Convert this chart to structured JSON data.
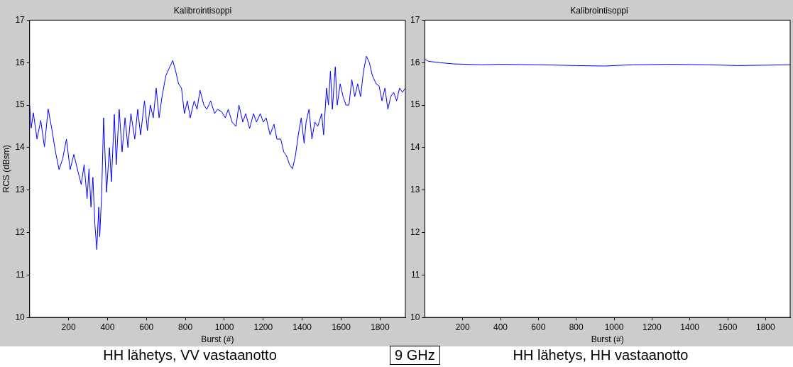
{
  "chart_data": [
    {
      "type": "line",
      "title": "Kalibrointisoppi",
      "xlabel": "Burst (#)",
      "ylabel": "RCS (dBsm)",
      "xlim": [
        0,
        1930
      ],
      "xticks": [
        200,
        400,
        600,
        800,
        1000,
        1200,
        1400,
        1600,
        1800
      ],
      "ylim": [
        10,
        17
      ],
      "yticks": [
        10,
        11,
        12,
        13,
        14,
        15,
        16,
        17
      ],
      "grid": false,
      "legend": false,
      "marker": "none",
      "line_style": "solid",
      "annotations": [
        "HH lähetys, VV vastaanotto",
        "9 GHz"
      ],
      "series": [
        {
          "color": "#0000ff",
          "x": [
            0,
            8,
            19,
            38,
            57,
            76,
            95,
            113,
            132,
            151,
            170,
            189,
            208,
            227,
            246,
            265,
            280,
            295,
            305,
            315,
            325,
            335,
            345,
            355,
            360,
            370,
            380,
            395,
            410,
            420,
            435,
            445,
            460,
            475,
            490,
            505,
            520,
            540,
            555,
            570,
            590,
            605,
            620,
            635,
            650,
            665,
            680,
            700,
            720,
            735,
            750,
            765,
            780,
            795,
            810,
            825,
            845,
            860,
            875,
            895,
            910,
            930,
            950,
            965,
            985,
            1005,
            1020,
            1040,
            1060,
            1075,
            1095,
            1110,
            1130,
            1150,
            1165,
            1185,
            1200,
            1215,
            1235,
            1255,
            1270,
            1290,
            1305,
            1320,
            1335,
            1350,
            1365,
            1380,
            1395,
            1410,
            1420,
            1435,
            1450,
            1465,
            1480,
            1500,
            1510,
            1525,
            1535,
            1545,
            1555,
            1570,
            1580,
            1595,
            1610,
            1625,
            1640,
            1655,
            1670,
            1685,
            1700,
            1715,
            1730,
            1745,
            1760,
            1780,
            1795,
            1810,
            1825,
            1840,
            1855,
            1870,
            1885,
            1900,
            1915,
            1930
          ],
          "values": [
            14.99,
            14.46,
            14.82,
            14.2,
            14.64,
            14.02,
            14.91,
            14.46,
            13.92,
            13.48,
            13.74,
            14.2,
            13.48,
            13.84,
            13.48,
            13.13,
            13.6,
            12.8,
            13.5,
            12.6,
            13.3,
            12.2,
            11.6,
            12.6,
            11.9,
            12.9,
            14.7,
            12.95,
            14.0,
            13.2,
            14.78,
            13.6,
            14.9,
            13.9,
            14.7,
            14.0,
            14.8,
            14.2,
            14.9,
            14.3,
            15.1,
            14.4,
            15.0,
            14.7,
            15.4,
            14.7,
            15.2,
            15.7,
            15.9,
            16.05,
            15.8,
            15.5,
            15.4,
            14.8,
            15.1,
            14.7,
            15.1,
            14.9,
            15.35,
            15.0,
            14.9,
            15.1,
            14.8,
            14.9,
            14.85,
            14.7,
            14.9,
            14.6,
            14.5,
            15.0,
            14.6,
            14.8,
            14.45,
            14.8,
            14.6,
            14.8,
            14.6,
            14.7,
            14.3,
            14.55,
            14.2,
            14.2,
            13.9,
            13.8,
            13.6,
            13.5,
            13.8,
            14.3,
            14.7,
            14.1,
            14.6,
            14.9,
            14.2,
            14.6,
            14.5,
            14.8,
            14.3,
            15.4,
            15.0,
            15.8,
            14.9,
            15.9,
            15.0,
            15.5,
            15.2,
            15.0,
            15.0,
            15.6,
            15.2,
            15.5,
            15.2,
            15.8,
            16.15,
            16.0,
            15.7,
            15.5,
            15.45,
            15.1,
            15.4,
            14.9,
            15.2,
            15.3,
            15.1,
            15.4,
            15.3,
            15.4
          ]
        }
      ]
    },
    {
      "type": "line",
      "title": "Kalibrointisoppi",
      "xlabel": "Burst (#)",
      "xlim": [
        0,
        1930
      ],
      "xticks": [
        200,
        400,
        600,
        800,
        1000,
        1200,
        1400,
        1600,
        1800
      ],
      "ylim": [
        10,
        17
      ],
      "yticks": [
        10,
        11,
        12,
        13,
        14,
        15,
        16,
        17
      ],
      "grid": false,
      "legend": false,
      "marker": "none",
      "line_style": "solid",
      "annotations": [
        "HH lähetys, HH vastaanotto"
      ],
      "series": [
        {
          "color": "#0000ff",
          "x": [
            0,
            20,
            80,
            150,
            300,
            400,
            600,
            800,
            950,
            1100,
            1300,
            1500,
            1650,
            1800,
            1930
          ],
          "values": [
            16.08,
            16.03,
            16.0,
            15.97,
            15.95,
            15.96,
            15.95,
            15.93,
            15.92,
            15.95,
            15.96,
            15.95,
            15.93,
            15.94,
            15.95
          ]
        }
      ]
    }
  ]
}
